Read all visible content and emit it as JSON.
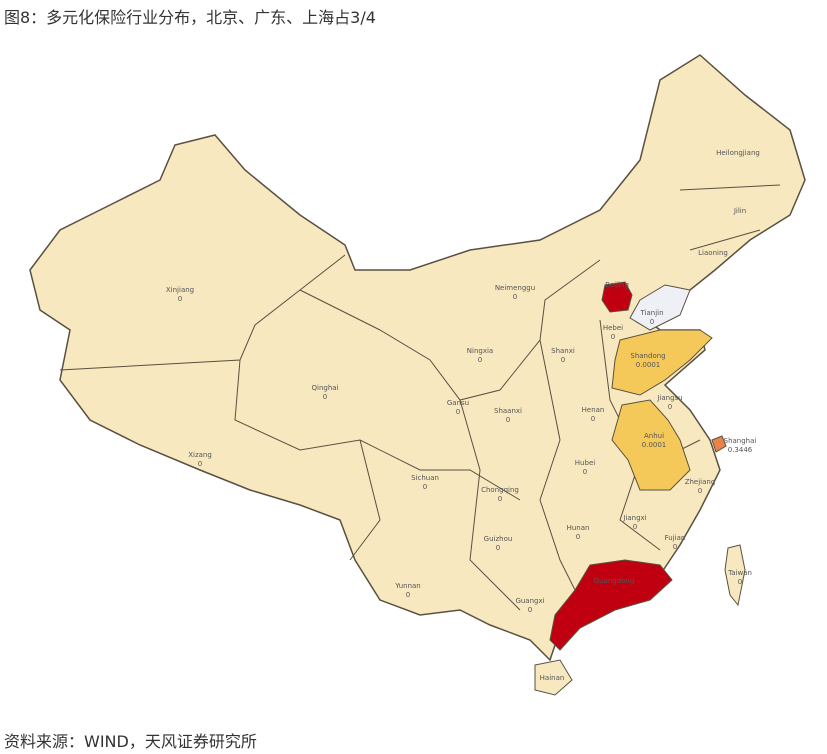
{
  "title": "图8：多元化保险行业分布，北京、广东、上海占3/4",
  "source": "资料来源：WIND，天风证券研究所",
  "colors": {
    "base": "#f7e8c0",
    "border": "#5a5040",
    "low": "#f5c85a",
    "mid": "#e8834a",
    "high": "#c00010"
  },
  "regions": [
    {
      "name": "Xinjiang",
      "value": "0",
      "level": "base"
    },
    {
      "name": "Xizang",
      "value": "0",
      "level": "base"
    },
    {
      "name": "Qinghai",
      "value": "0",
      "level": "base"
    },
    {
      "name": "Gansu",
      "value": "0",
      "level": "base"
    },
    {
      "name": "Neimenggu",
      "value": "0",
      "level": "base"
    },
    {
      "name": "Ningxia",
      "value": "0",
      "level": "base"
    },
    {
      "name": "Shaanxi",
      "value": "0",
      "level": "base"
    },
    {
      "name": "Shanxi",
      "value": "0",
      "level": "base"
    },
    {
      "name": "Sichuan",
      "value": "0",
      "level": "base"
    },
    {
      "name": "Chongqing",
      "value": "0",
      "level": "base"
    },
    {
      "name": "Yunnan",
      "value": "0",
      "level": "base"
    },
    {
      "name": "Guizhou",
      "value": "0",
      "level": "base"
    },
    {
      "name": "Guangxi",
      "value": "0",
      "level": "base"
    },
    {
      "name": "Hunan",
      "value": "0",
      "level": "base"
    },
    {
      "name": "Hubei",
      "value": "0",
      "level": "base"
    },
    {
      "name": "Henan",
      "value": "0",
      "level": "base"
    },
    {
      "name": "Hebei",
      "value": "0",
      "level": "base"
    },
    {
      "name": "Beijing",
      "value": "",
      "level": "high"
    },
    {
      "name": "Tianjin",
      "value": "0",
      "level": "none"
    },
    {
      "name": "Shandong",
      "value": "0.0001",
      "level": "low"
    },
    {
      "name": "Jiangsu",
      "value": "0",
      "level": "base"
    },
    {
      "name": "Anhui",
      "value": "0.0001",
      "level": "low"
    },
    {
      "name": "Shanghai",
      "value": "0.3446",
      "level": "mid"
    },
    {
      "name": "Zhejiang",
      "value": "0",
      "level": "base"
    },
    {
      "name": "Jiangxi",
      "value": "0",
      "level": "base"
    },
    {
      "name": "Fujian",
      "value": "0",
      "level": "base"
    },
    {
      "name": "Guangdong",
      "value": "",
      "level": "high"
    },
    {
      "name": "Hainan",
      "value": "",
      "level": "base"
    },
    {
      "name": "Taiwan",
      "value": "0",
      "level": "base"
    },
    {
      "name": "Heilongjiang",
      "value": "",
      "level": "base"
    },
    {
      "name": "Jilin",
      "value": "",
      "level": "base"
    },
    {
      "name": "Liaoning",
      "value": "",
      "level": "base"
    }
  ]
}
